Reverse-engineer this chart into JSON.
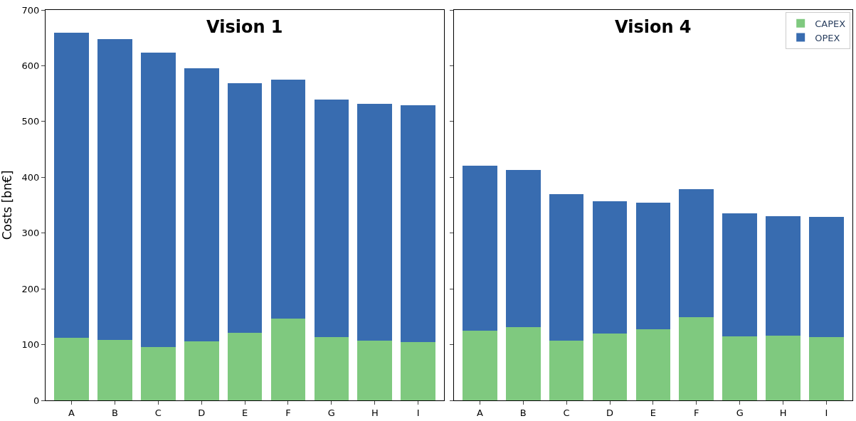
{
  "chart_data": [
    {
      "type": "bar",
      "title": "Vision 1",
      "ylabel": "Costs [bn€]",
      "stacked": true,
      "categories": [
        "A",
        "B",
        "C",
        "D",
        "E",
        "F",
        "G",
        "H",
        "I"
      ],
      "ylim": [
        0,
        700
      ],
      "yticks": [
        0,
        100,
        200,
        300,
        400,
        500,
        600,
        700
      ],
      "series": [
        {
          "color": "#7fc97f",
          "values": [
            112,
            108,
            96,
            106,
            121,
            147,
            113,
            107,
            105
          ]
        },
        {
          "color": "#386cb0",
          "values": [
            547,
            540,
            527,
            489,
            448,
            428,
            426,
            425,
            424
          ]
        }
      ]
    },
    {
      "type": "bar",
      "title": "Vision 4",
      "stacked": true,
      "categories": [
        "A",
        "B",
        "C",
        "D",
        "E",
        "F",
        "G",
        "H",
        "I"
      ],
      "ylim": [
        0,
        700
      ],
      "yticks": [
        0,
        100,
        200,
        300,
        400,
        500,
        600,
        700
      ],
      "tick_labels": "x",
      "legend": "top right",
      "series": [
        {
          "name": "CAPEX",
          "color": "#7fc97f",
          "values": [
            125,
            131,
            107,
            120,
            128,
            149,
            115,
            116,
            113
          ]
        },
        {
          "name": "OPEX",
          "color": "#386cb0",
          "values": [
            296,
            282,
            263,
            237,
            226,
            230,
            220,
            214,
            216
          ]
        }
      ]
    }
  ]
}
